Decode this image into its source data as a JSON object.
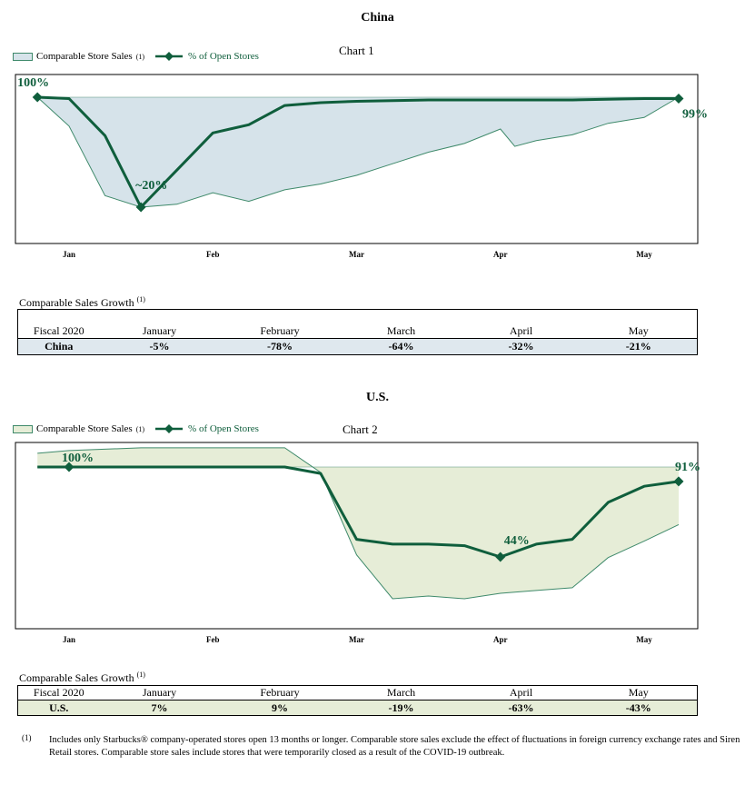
{
  "charts": [
    {
      "region_title": "China",
      "chart_label": "Chart 1",
      "legend": {
        "area_label": "Comparable Store Sales",
        "area_sup": "(1)",
        "line_label": "% of Open Stores"
      },
      "colors": {
        "area_fill": "#d6e3ea",
        "area_stroke": "#3f8a6b",
        "line": "#0f5e3c"
      },
      "table": {
        "caption": "Comparable Sales Growth",
        "caption_sup": "(1)",
        "headers": [
          "Fiscal 2020",
          "January",
          "February",
          "March",
          "April",
          "May"
        ],
        "row": [
          "China",
          "-5%",
          "-78%",
          "-64%",
          "-32%",
          "-21%"
        ],
        "row_bg": "#dfe8ee"
      }
    },
    {
      "region_title": "U.S.",
      "chart_label": "Chart 2",
      "legend": {
        "area_label": "Comparable Store Sales",
        "area_sup": "(1)",
        "line_label": "% of Open Stores"
      },
      "colors": {
        "area_fill": "#e6edd7",
        "area_stroke": "#3f8a6b",
        "line": "#0f5e3c"
      },
      "table": {
        "caption": "Comparable Sales Growth",
        "caption_sup": "(1)",
        "headers": [
          "Fiscal 2020",
          "January",
          "February",
          "March",
          "April",
          "May"
        ],
        "row": [
          "U.S.",
          "7%",
          "9%",
          "-19%",
          "-63%",
          "-43%"
        ],
        "row_bg": "#e6edd7"
      }
    }
  ],
  "chart_data": [
    {
      "type": "line",
      "title": "China",
      "subtitle": "Chart 1",
      "x_ticks": [
        "Jan",
        "Feb",
        "Mar",
        "Apr",
        "May"
      ],
      "x_tick_positions": [
        0,
        1,
        2,
        3,
        4
      ],
      "xlim": [
        -0.22,
        4.35
      ],
      "ylim": [
        -42,
        6
      ],
      "y_ticks": [],
      "series": [
        {
          "name": "% of Open Stores",
          "kind": "line",
          "x": [
            -0.22,
            0.0,
            0.25,
            0.5,
            0.75,
            1.0,
            1.25,
            1.5,
            1.75,
            2.0,
            2.5,
            3.0,
            3.5,
            4.0,
            4.24
          ],
          "y": [
            100,
            99,
            72,
            20,
            47,
            74,
            80,
            94,
            96,
            97,
            98,
            98,
            98,
            99,
            99
          ],
          "labels": [
            {
              "index": 0,
              "text": "100%"
            },
            {
              "index": 3,
              "text": "~20%"
            },
            {
              "index": 14,
              "text": "99%"
            }
          ],
          "markers": [
            0,
            3,
            14
          ]
        },
        {
          "name": "Comparable Store Sales",
          "kind": "area",
          "x": [
            -0.22,
            0.0,
            0.25,
            0.5,
            0.75,
            1.0,
            1.25,
            1.5,
            1.75,
            2.0,
            2.25,
            2.5,
            2.75,
            3.0,
            3.1,
            3.25,
            3.5,
            3.75,
            4.0,
            4.24
          ],
          "y": [
            0,
            -10,
            -34,
            -38,
            -37,
            -33,
            -36,
            -32,
            -30,
            -27,
            -23,
            -19,
            -16,
            -11,
            -17,
            -15,
            -13,
            -9,
            -7,
            0
          ]
        }
      ]
    },
    {
      "type": "line",
      "title": "U.S.",
      "subtitle": "Chart 2",
      "x_ticks": [
        "Jan",
        "Feb",
        "Mar",
        "Apr",
        "May"
      ],
      "x_tick_positions": [
        0,
        1,
        2,
        3,
        4
      ],
      "xlim": [
        -0.22,
        4.35
      ],
      "ylim": [
        -55,
        6
      ],
      "y_ticks": [],
      "series": [
        {
          "name": "% of Open Stores",
          "kind": "line",
          "x": [
            -0.22,
            0.0,
            0.5,
            1.0,
            1.5,
            1.75,
            2.0,
            2.25,
            2.5,
            2.75,
            3.0,
            3.25,
            3.5,
            3.75,
            4.0,
            4.24
          ],
          "y": [
            100,
            100,
            100,
            100,
            100,
            96,
            55,
            52,
            52,
            51,
            44,
            52,
            55,
            78,
            88,
            91
          ],
          "labels": [
            {
              "index": 1,
              "text": "100%"
            },
            {
              "index": 10,
              "text": "44%"
            },
            {
              "index": 15,
              "text": "91%"
            }
          ],
          "markers": [
            1,
            10,
            15
          ]
        },
        {
          "name": "Comparable Store Sales",
          "kind": "area",
          "x": [
            -0.22,
            0.0,
            0.5,
            1.0,
            1.5,
            1.75,
            2.0,
            2.25,
            2.5,
            2.75,
            3.0,
            3.25,
            3.5,
            3.75,
            4.0,
            4.24
          ],
          "y": [
            5,
            6,
            7,
            7,
            7,
            -2,
            -32,
            -48,
            -47,
            -48,
            -46,
            -45,
            -44,
            -33,
            -27,
            -21
          ]
        }
      ]
    }
  ],
  "footnote": {
    "marker": "(1)",
    "text": "Includes only Starbucks® company-operated stores open 13 months or longer. Comparable store sales exclude the effect of fluctuations in foreign currency exchange rates and Siren Retail stores.  Comparable store sales include stores that were temporarily closed as a result of the COVID-19 outbreak."
  }
}
